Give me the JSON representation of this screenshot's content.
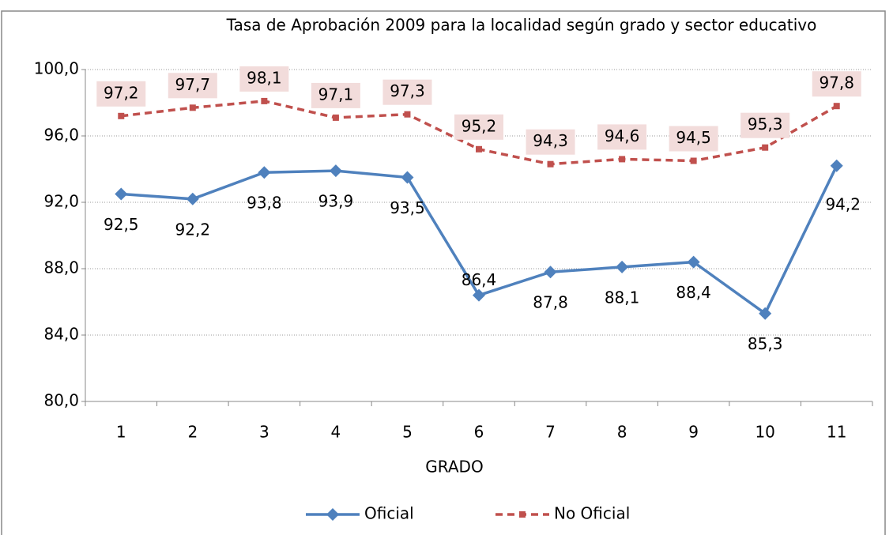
{
  "chart_data": {
    "type": "line",
    "title": "Tasa de Aprobación 2009 para la localidad según grado y sector educativo",
    "x_label": "GRADO",
    "categories": [
      "1",
      "2",
      "3",
      "4",
      "5",
      "6",
      "7",
      "8",
      "9",
      "10",
      "11"
    ],
    "series": [
      {
        "name": "Oficial",
        "color": "#4f81bd",
        "marker": "diamond",
        "dash": false,
        "values": [
          92.5,
          92.2,
          93.8,
          93.9,
          93.5,
          86.4,
          87.8,
          88.1,
          88.4,
          85.3,
          94.2
        ],
        "value_labels": [
          "92,5",
          "92,2",
          "93,8",
          "93,9",
          "93,5",
          "86,4",
          "87,8",
          "88,1",
          "88,4",
          "85,3",
          "94,2"
        ]
      },
      {
        "name": "No Oficial",
        "color": "#c0504d",
        "marker": "square",
        "dash": true,
        "values": [
          97.2,
          97.7,
          98.1,
          97.1,
          97.3,
          95.2,
          94.3,
          94.6,
          94.5,
          95.3,
          97.8
        ],
        "value_labels": [
          "97,2",
          "97,7",
          "98,1",
          "97,1",
          "97,3",
          "95,2",
          "94,3",
          "94,6",
          "94,5",
          "95,3",
          "97,8"
        ]
      }
    ],
    "ylim": [
      80,
      100
    ],
    "yticks": [
      {
        "value": 80,
        "label": "80,0"
      },
      {
        "value": 84,
        "label": "84,0"
      },
      {
        "value": 88,
        "label": "88,0"
      },
      {
        "value": 92,
        "label": "92,0"
      },
      {
        "value": 96,
        "label": "96,0"
      },
      {
        "value": 100,
        "label": "100,0"
      }
    ],
    "grid": true,
    "legend": "bottom"
  }
}
